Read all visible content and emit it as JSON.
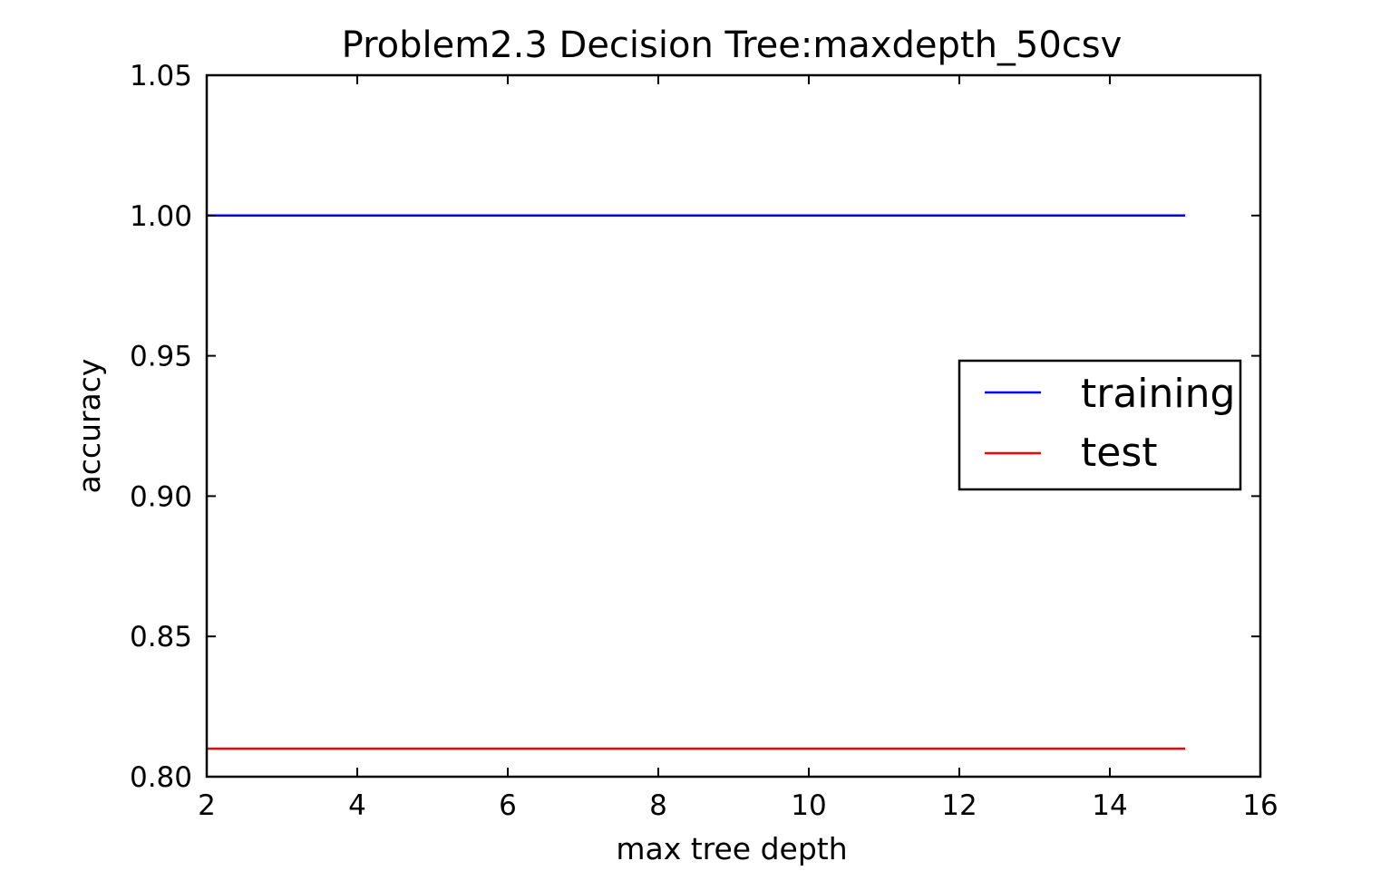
{
  "chart_data": {
    "type": "line",
    "title": "Problem2.3 Decision Tree:maxdepth_50csv",
    "xlabel": "max tree depth",
    "ylabel": "accuracy",
    "xlim": [
      2,
      16
    ],
    "ylim": [
      0.8,
      1.05
    ],
    "xticks": [
      2,
      4,
      6,
      8,
      10,
      12,
      14,
      16
    ],
    "xtick_labels": [
      "2",
      "4",
      "6",
      "8",
      "10",
      "12",
      "14",
      "16"
    ],
    "yticks": [
      0.8,
      0.85,
      0.9,
      0.95,
      1.0,
      1.05
    ],
    "ytick_labels": [
      "0.80",
      "0.85",
      "0.90",
      "0.95",
      "1.00",
      "1.05"
    ],
    "grid": false,
    "legend_position": "center-right",
    "x": [
      2,
      3,
      4,
      5,
      6,
      7,
      8,
      9,
      10,
      11,
      12,
      13,
      14,
      15
    ],
    "series": [
      {
        "name": "training",
        "color": "#0000ff",
        "values": [
          1.0,
          1.0,
          1.0,
          1.0,
          1.0,
          1.0,
          1.0,
          1.0,
          1.0,
          1.0,
          1.0,
          1.0,
          1.0,
          1.0
        ]
      },
      {
        "name": "test",
        "color": "#ff0000",
        "values": [
          0.81,
          0.81,
          0.81,
          0.81,
          0.81,
          0.81,
          0.81,
          0.81,
          0.81,
          0.81,
          0.81,
          0.81,
          0.81,
          0.81
        ]
      }
    ]
  }
}
